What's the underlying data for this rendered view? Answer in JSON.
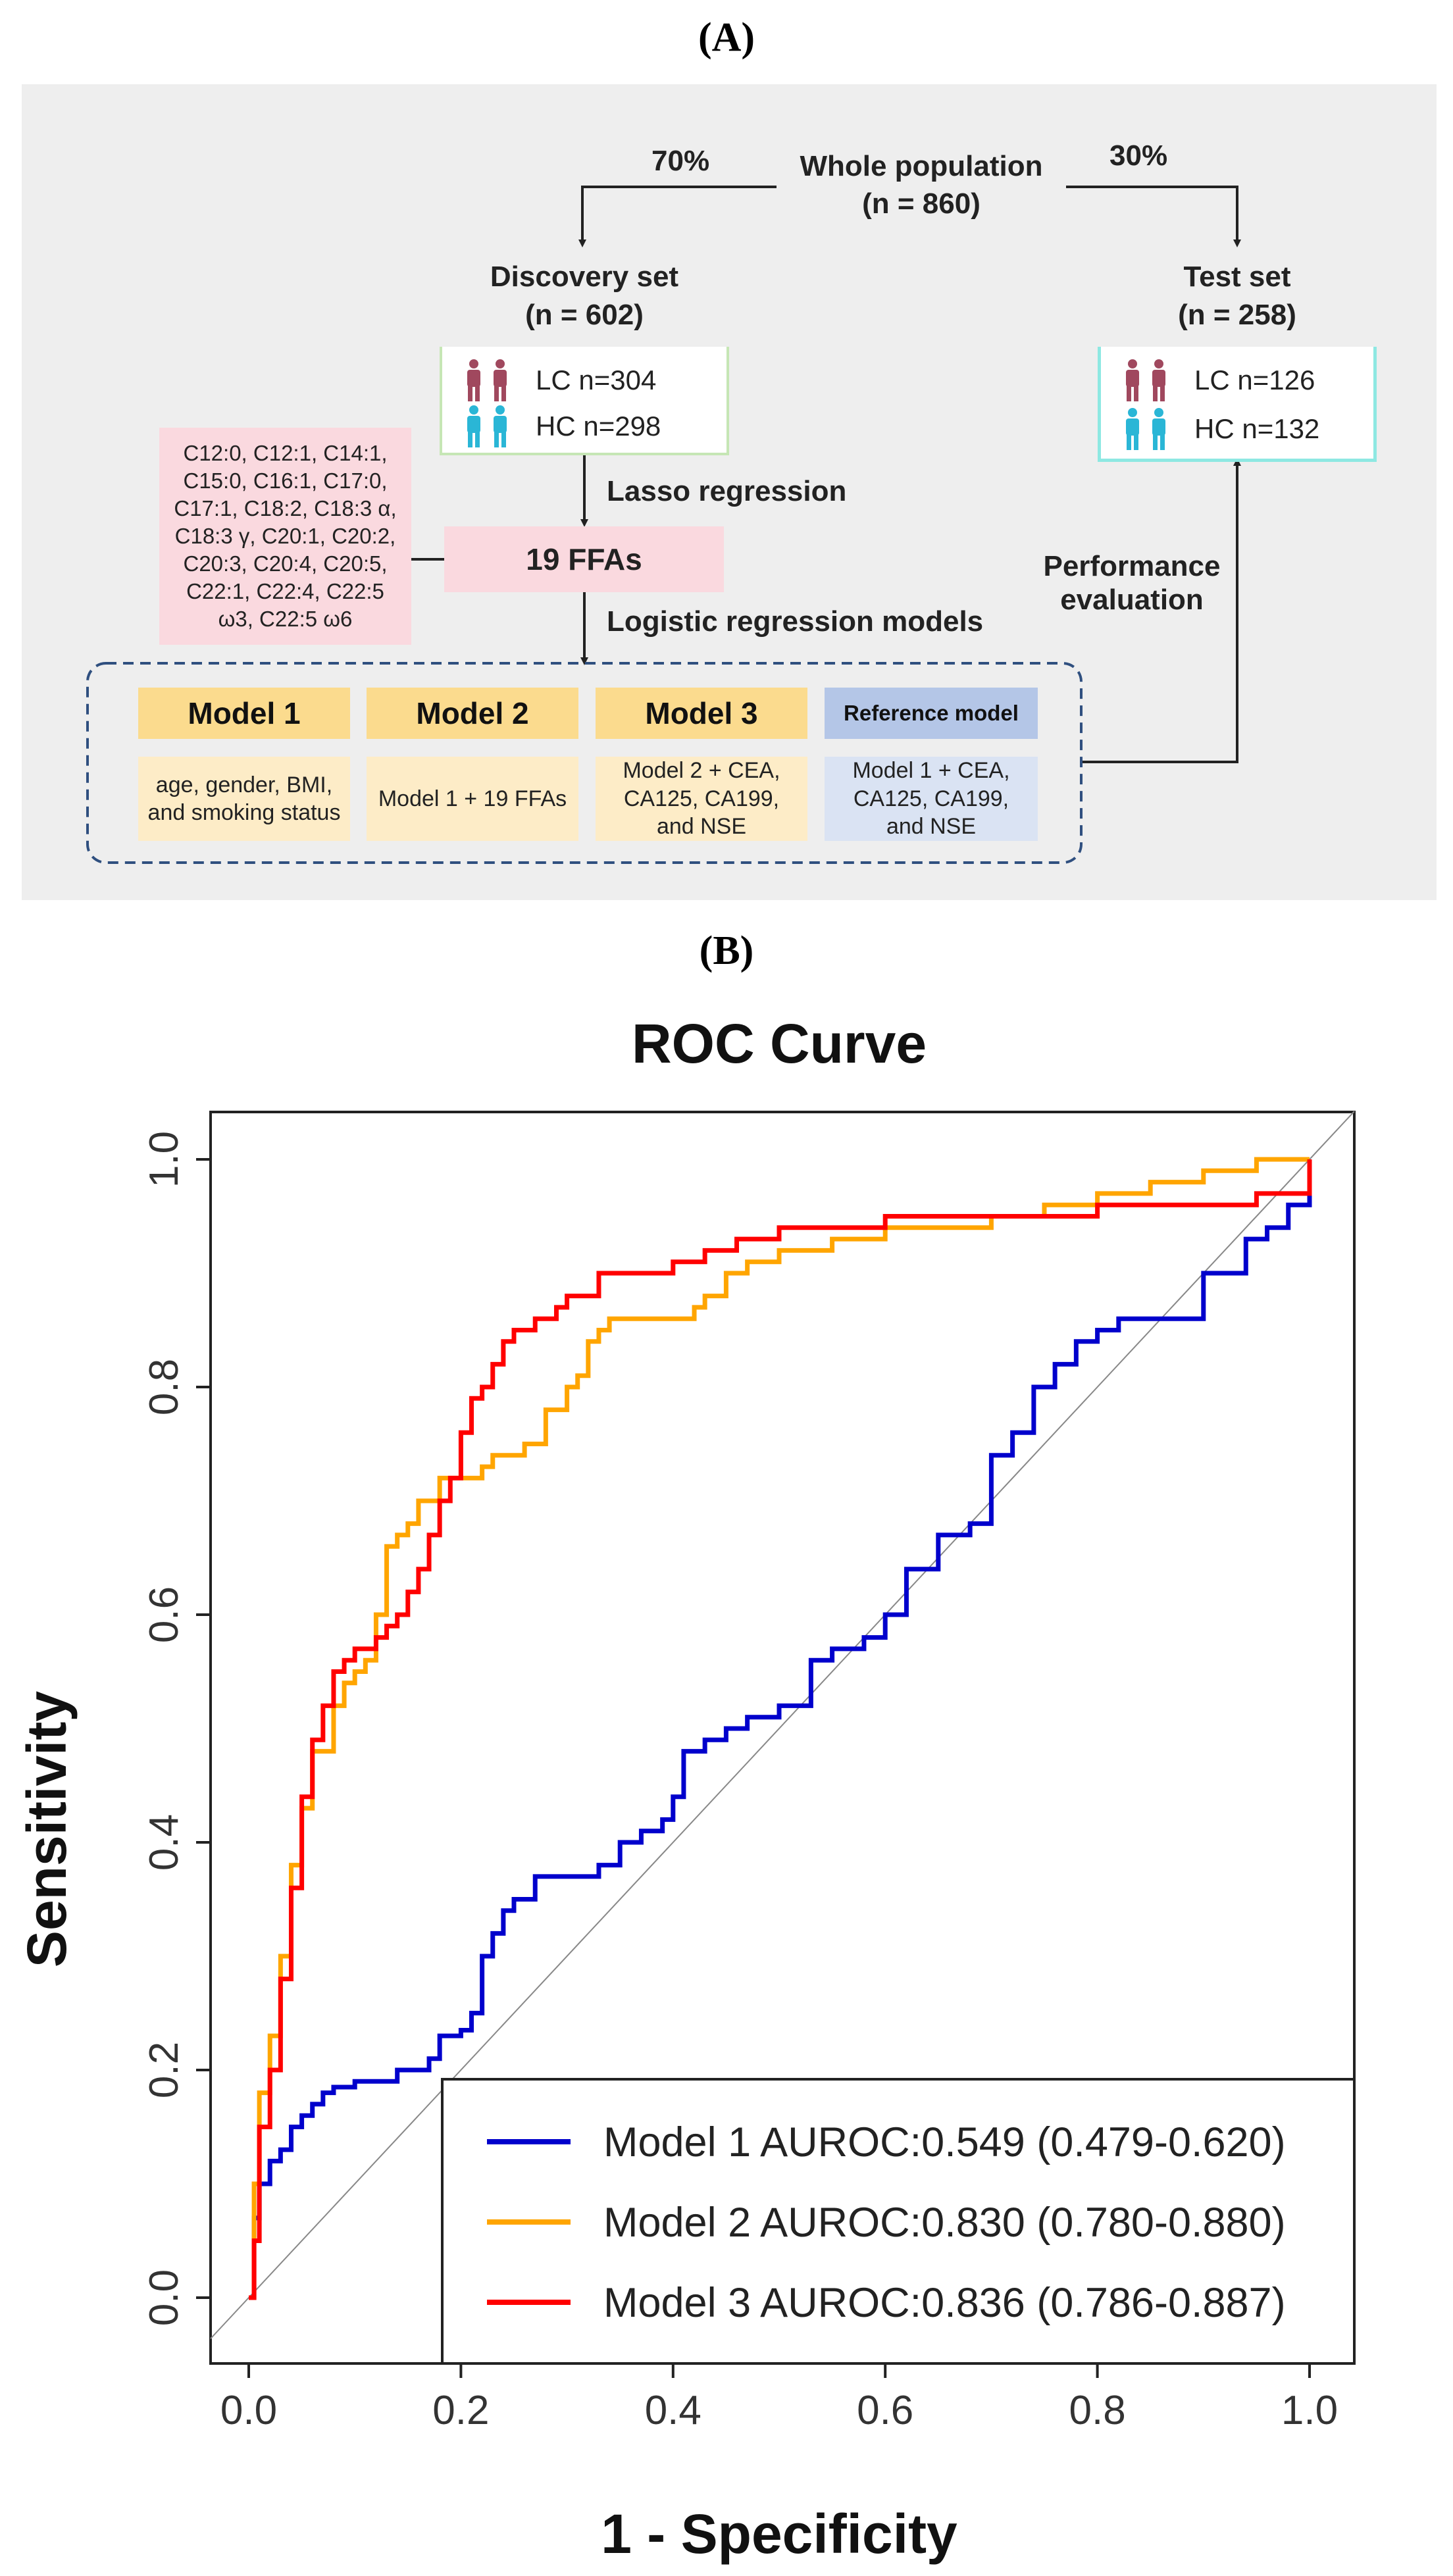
{
  "panel_a_label": "(A)",
  "panel_b_label": "(B)",
  "flowchart": {
    "whole": {
      "title": "Whole population",
      "n": "(n = 860)"
    },
    "split_left": "70%",
    "split_right": "30%",
    "discovery": {
      "title": "Discovery set",
      "n": "(n = 602)",
      "lc": "LC  n=304",
      "hc": "HC n=298"
    },
    "test": {
      "title": "Test set",
      "n": "(n = 258)",
      "lc": "LC  n=126",
      "hc": "HC n=132"
    },
    "lasso_label": "Lasso regression",
    "ffa_box": "19 FFAs",
    "ffa_list": "C12:0, C12:1, C14:1, C15:0, C16:1, C17:0, C17:1, C18:2, C18:3 α, C18:3 γ, C20:1, C20:2, C20:3, C20:4, C20:5, C22:1, C22:4, C22:5 ω3, C22:5 ω6",
    "logistic_label": "Logistic regression models",
    "performance_label_1": "Performance",
    "performance_label_2": "evaluation",
    "models": [
      {
        "name": "Model 1",
        "desc": "age, gender, BMI, and smoking status"
      },
      {
        "name": "Model 2",
        "desc": "Model 1 + 19 FFAs"
      },
      {
        "name": "Model 3",
        "desc": "Model 2 + CEA, CA125, CA199, and NSE"
      },
      {
        "name": "Reference model",
        "desc": "Model 1 + CEA, CA125, CA199, and NSE"
      }
    ],
    "colors": {
      "whole": "#d6dde6",
      "discovery": "#c6e6b5",
      "test": "#8ee8e2",
      "ffa": "#fad9df",
      "model_head": "#fbdb8e",
      "model_body": "#fdecc7",
      "ref_head": "#b4c6e7",
      "ref_body": "#dae3f3",
      "lc_icon": "#a0485e",
      "hc_icon": "#2ab6d6"
    }
  },
  "chart_data": {
    "type": "line",
    "title": "ROC Curve",
    "xlabel": "1 - Specificity",
    "ylabel": "Sensitivity",
    "xlim": [
      0,
      1
    ],
    "ylim": [
      0,
      1
    ],
    "xticks": [
      "0.0",
      "0.2",
      "0.4",
      "0.6",
      "0.8",
      "1.0"
    ],
    "yticks": [
      "0.0",
      "0.2",
      "0.4",
      "0.6",
      "0.8",
      "1.0"
    ],
    "legend_position": "bottom-right",
    "diagonal": true,
    "series": [
      {
        "name": "Model 1 AUROC:0.549 (0.479-0.620)",
        "color": "#0000cc",
        "x": [
          0,
          0.005,
          0.01,
          0.015,
          0.02,
          0.03,
          0.04,
          0.05,
          0.06,
          0.07,
          0.08,
          0.1,
          0.12,
          0.14,
          0.16,
          0.17,
          0.18,
          0.2,
          0.21,
          0.22,
          0.23,
          0.24,
          0.25,
          0.27,
          0.3,
          0.33,
          0.35,
          0.37,
          0.39,
          0.4,
          0.41,
          0.43,
          0.45,
          0.47,
          0.5,
          0.53,
          0.55,
          0.56,
          0.58,
          0.6,
          0.62,
          0.65,
          0.66,
          0.68,
          0.7,
          0.72,
          0.74,
          0.76,
          0.78,
          0.8,
          0.82,
          0.86,
          0.9,
          0.94,
          0.96,
          0.98,
          1.0
        ],
        "y": [
          0,
          0.07,
          0.1,
          0.1,
          0.12,
          0.13,
          0.15,
          0.16,
          0.17,
          0.18,
          0.185,
          0.19,
          0.19,
          0.2,
          0.2,
          0.21,
          0.23,
          0.235,
          0.25,
          0.3,
          0.32,
          0.34,
          0.35,
          0.37,
          0.37,
          0.38,
          0.4,
          0.41,
          0.42,
          0.44,
          0.48,
          0.49,
          0.5,
          0.51,
          0.52,
          0.56,
          0.57,
          0.57,
          0.58,
          0.6,
          0.64,
          0.67,
          0.67,
          0.68,
          0.74,
          0.76,
          0.8,
          0.82,
          0.84,
          0.85,
          0.86,
          0.86,
          0.9,
          0.93,
          0.94,
          0.96,
          1.0
        ]
      },
      {
        "name": "Model 2 AUROC:0.830 (0.780-0.880)",
        "color": "#ffa500",
        "x": [
          0,
          0.005,
          0.01,
          0.02,
          0.03,
          0.04,
          0.05,
          0.06,
          0.08,
          0.09,
          0.1,
          0.11,
          0.12,
          0.13,
          0.14,
          0.15,
          0.16,
          0.18,
          0.2,
          0.22,
          0.23,
          0.24,
          0.26,
          0.27,
          0.28,
          0.3,
          0.31,
          0.32,
          0.33,
          0.34,
          0.36,
          0.4,
          0.42,
          0.43,
          0.44,
          0.45,
          0.47,
          0.5,
          0.55,
          0.6,
          0.65,
          0.7,
          0.75,
          0.8,
          0.85,
          0.9,
          0.95,
          1.0
        ],
        "y": [
          0,
          0.1,
          0.18,
          0.23,
          0.3,
          0.38,
          0.43,
          0.48,
          0.52,
          0.54,
          0.55,
          0.56,
          0.6,
          0.66,
          0.67,
          0.68,
          0.7,
          0.72,
          0.72,
          0.73,
          0.74,
          0.74,
          0.75,
          0.75,
          0.78,
          0.8,
          0.81,
          0.84,
          0.85,
          0.86,
          0.86,
          0.86,
          0.87,
          0.88,
          0.88,
          0.9,
          0.91,
          0.92,
          0.93,
          0.94,
          0.94,
          0.95,
          0.96,
          0.97,
          0.98,
          0.99,
          1.0,
          1.0
        ]
      },
      {
        "name": "Model 3 AUROC:0.836 (0.786-0.887)",
        "color": "#ff0000",
        "x": [
          0,
          0.005,
          0.01,
          0.02,
          0.03,
          0.04,
          0.05,
          0.06,
          0.07,
          0.08,
          0.09,
          0.1,
          0.11,
          0.12,
          0.13,
          0.14,
          0.15,
          0.16,
          0.17,
          0.18,
          0.19,
          0.2,
          0.21,
          0.22,
          0.23,
          0.24,
          0.25,
          0.27,
          0.29,
          0.3,
          0.31,
          0.33,
          0.35,
          0.38,
          0.4,
          0.43,
          0.46,
          0.5,
          0.55,
          0.6,
          0.7,
          0.8,
          0.9,
          0.95,
          1.0
        ],
        "y": [
          0,
          0.05,
          0.15,
          0.2,
          0.28,
          0.36,
          0.44,
          0.49,
          0.52,
          0.55,
          0.56,
          0.57,
          0.57,
          0.58,
          0.59,
          0.6,
          0.62,
          0.64,
          0.67,
          0.7,
          0.72,
          0.76,
          0.79,
          0.8,
          0.82,
          0.84,
          0.85,
          0.86,
          0.87,
          0.88,
          0.88,
          0.9,
          0.9,
          0.9,
          0.91,
          0.92,
          0.93,
          0.94,
          0.94,
          0.95,
          0.95,
          0.96,
          0.96,
          0.97,
          1.0
        ]
      }
    ]
  }
}
